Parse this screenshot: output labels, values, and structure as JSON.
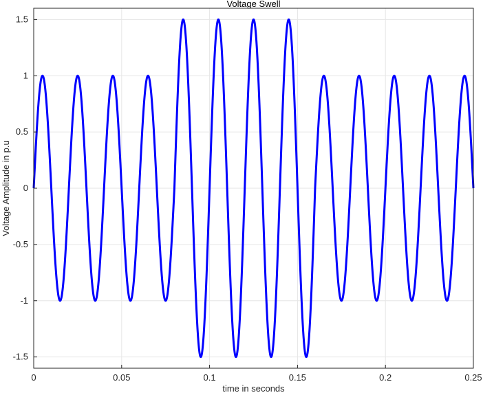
{
  "chart_data": {
    "type": "line",
    "title": "Voltage Swell",
    "xlabel": "time in seconds",
    "ylabel": "Voltage Amplitude in p.u",
    "xlim": [
      0,
      0.25
    ],
    "ylim": [
      -1.6,
      1.6
    ],
    "xticks": [
      0,
      0.05,
      0.1,
      0.15,
      0.2,
      0.25
    ],
    "xtick_labels": [
      "0",
      "0.05",
      "0.1",
      "0.15",
      "0.2",
      "0.25"
    ],
    "yticks": [
      -1.5,
      -1,
      -0.5,
      0,
      0.5,
      1,
      1.5
    ],
    "ytick_labels": [
      "-1.5",
      "-1",
      "-0.5",
      "0",
      "0.5",
      "1",
      "1.5"
    ],
    "grid": true,
    "series": [
      {
        "signal": "sine",
        "frequency_hz": 50,
        "amplitude_pu": 1.0,
        "swell_amplitude_pu": 1.5,
        "swell_interval_s": [
          0.08,
          0.16
        ],
        "color": "#0000ff"
      }
    ]
  }
}
